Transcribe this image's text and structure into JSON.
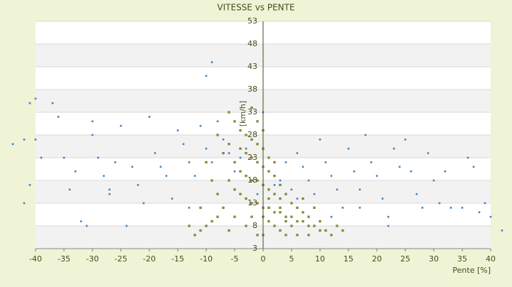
{
  "chart_data": {
    "type": "scatter",
    "title": "VITESSE vs PENTE",
    "xlabel": "Pente [%]",
    "ylabel": "[km/h]",
    "xlim": [
      -40,
      40
    ],
    "xticks": [
      -40,
      -35,
      -30,
      -25,
      -20,
      -15,
      -10,
      -5,
      0,
      5,
      10,
      15,
      20,
      25,
      30,
      35,
      40
    ],
    "ylim": [
      3,
      53
    ],
    "yticks": [
      3,
      8,
      13,
      18,
      23,
      28,
      33,
      38,
      43,
      48,
      53
    ],
    "grid": true,
    "series": [
      {
        "color": "#3d85c6",
        "x": [
          -41,
          -40,
          -37,
          -44,
          -42,
          -40,
          -39,
          -41,
          -42,
          -36,
          -35,
          -34,
          -32,
          -31,
          -30,
          -30,
          -29,
          -28,
          -27,
          -26,
          -25,
          -24,
          -23,
          -22,
          -21,
          -20,
          -19,
          -18,
          -17,
          -16,
          -15,
          -14,
          -13,
          -12,
          -11,
          -10,
          -9,
          -10,
          -9,
          -8,
          -7,
          -6,
          -5,
          -4,
          -3,
          -2,
          -1,
          0,
          1,
          2,
          3,
          4,
          5,
          6,
          7,
          8,
          9,
          10,
          11,
          12,
          13,
          14,
          15,
          16,
          17,
          18,
          19,
          20,
          21,
          22,
          23,
          24,
          25,
          26,
          27,
          28,
          29,
          30,
          31,
          32,
          33,
          35,
          36,
          37,
          38,
          39,
          40,
          42,
          -27,
          -33,
          -13,
          6,
          12,
          17,
          22
        ],
        "values": [
          35,
          36,
          35,
          26,
          27,
          27,
          23,
          17,
          13,
          32,
          23,
          16,
          9,
          8,
          31,
          28,
          23,
          19,
          15,
          22,
          30,
          8,
          21,
          17,
          13,
          32,
          24,
          21,
          19,
          14,
          29,
          26,
          22,
          19,
          30,
          41,
          44,
          25,
          22,
          31,
          27,
          24,
          20,
          23,
          25,
          18,
          15,
          33,
          20,
          17,
          18,
          22,
          16,
          24,
          21,
          18,
          15,
          27,
          22,
          19,
          16,
          12,
          25,
          20,
          16,
          28,
          22,
          19,
          14,
          10,
          25,
          21,
          27,
          20,
          15,
          12,
          24,
          18,
          13,
          20,
          12,
          12,
          23,
          21,
          11,
          13,
          10,
          7,
          16,
          20,
          12,
          14,
          10,
          12,
          8
        ]
      },
      {
        "color": "#9a9a1e",
        "x": [
          -6,
          -5,
          -4,
          -3,
          -2,
          -1,
          0,
          -4,
          -3,
          -2,
          -1,
          0,
          1,
          -5,
          -4,
          -3,
          -2,
          -1,
          0,
          1,
          2,
          3,
          -6,
          -5,
          -4,
          -3,
          -2,
          -1,
          0,
          1,
          2,
          3,
          4,
          5,
          6,
          7,
          8,
          9,
          10,
          11,
          12,
          13,
          14,
          -7,
          -8,
          -9,
          -10,
          -11,
          -12,
          -13,
          -8,
          -9,
          -10,
          -7,
          -8,
          -6,
          -11,
          2,
          3,
          4,
          5,
          6,
          1,
          2,
          0,
          -1,
          -2,
          1,
          2,
          3,
          -1,
          0,
          4,
          6,
          8,
          -3,
          -5,
          -6,
          -2,
          0,
          1,
          3,
          4,
          5,
          7,
          8,
          10,
          9,
          7
        ],
        "values": [
          33,
          31,
          29,
          28,
          27,
          26,
          25,
          25,
          24,
          23,
          22,
          21,
          20,
          22,
          20,
          19,
          18,
          18,
          17,
          16,
          15,
          14,
          18,
          16,
          15,
          14,
          13,
          13,
          12,
          12,
          11,
          11,
          10,
          10,
          9,
          9,
          8,
          8,
          7,
          7,
          6,
          8,
          7,
          12,
          10,
          9,
          8,
          7,
          6,
          8,
          15,
          18,
          22,
          24,
          28,
          26,
          12,
          19,
          17,
          15,
          13,
          12,
          23,
          22,
          29,
          31,
          34,
          9,
          8,
          7,
          6,
          6,
          6,
          6,
          6,
          8,
          10,
          7,
          10,
          10,
          14,
          12,
          9,
          8,
          11,
          10,
          9,
          12,
          14
        ]
      }
    ]
  }
}
